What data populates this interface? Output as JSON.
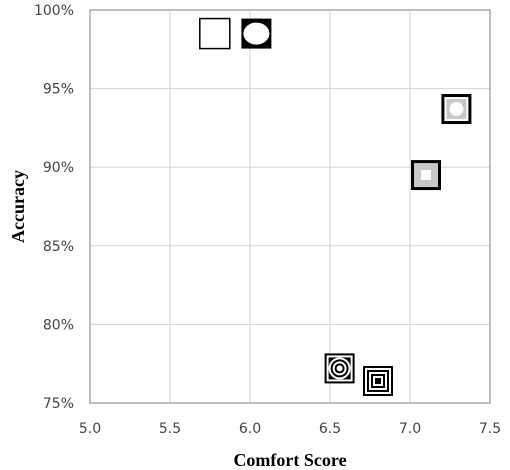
{
  "chart_data": {
    "type": "scatter",
    "title": "",
    "xlabel": "Comfort Score",
    "ylabel": "Accuracy",
    "xlim": [
      5.0,
      7.5
    ],
    "ylim": [
      75,
      100
    ],
    "x_ticks": [
      "5.0",
      "5.5",
      "6.0",
      "6.5",
      "7.0",
      "7.5"
    ],
    "y_ticks": [
      "75%",
      "80%",
      "85%",
      "90%",
      "95%",
      "100%"
    ],
    "grid": true,
    "legend": "none",
    "points": [
      {
        "x": 5.78,
        "y": 98.5,
        "marker": "white-square"
      },
      {
        "x": 6.04,
        "y": 98.5,
        "marker": "black-square-white-circle"
      },
      {
        "x": 7.29,
        "y": 93.7,
        "marker": "gray-circle-in-square"
      },
      {
        "x": 7.1,
        "y": 89.5,
        "marker": "gray-square-in-square"
      },
      {
        "x": 6.56,
        "y": 77.2,
        "marker": "concentric-circles-in-square"
      },
      {
        "x": 6.8,
        "y": 76.4,
        "marker": "concentric-squares"
      }
    ]
  },
  "colors": {
    "grid": "#d3d3d3",
    "frame": "#808080",
    "marker_dark": "#000000",
    "marker_gray": "#c8c8c8",
    "marker_light": "#ffffff"
  }
}
